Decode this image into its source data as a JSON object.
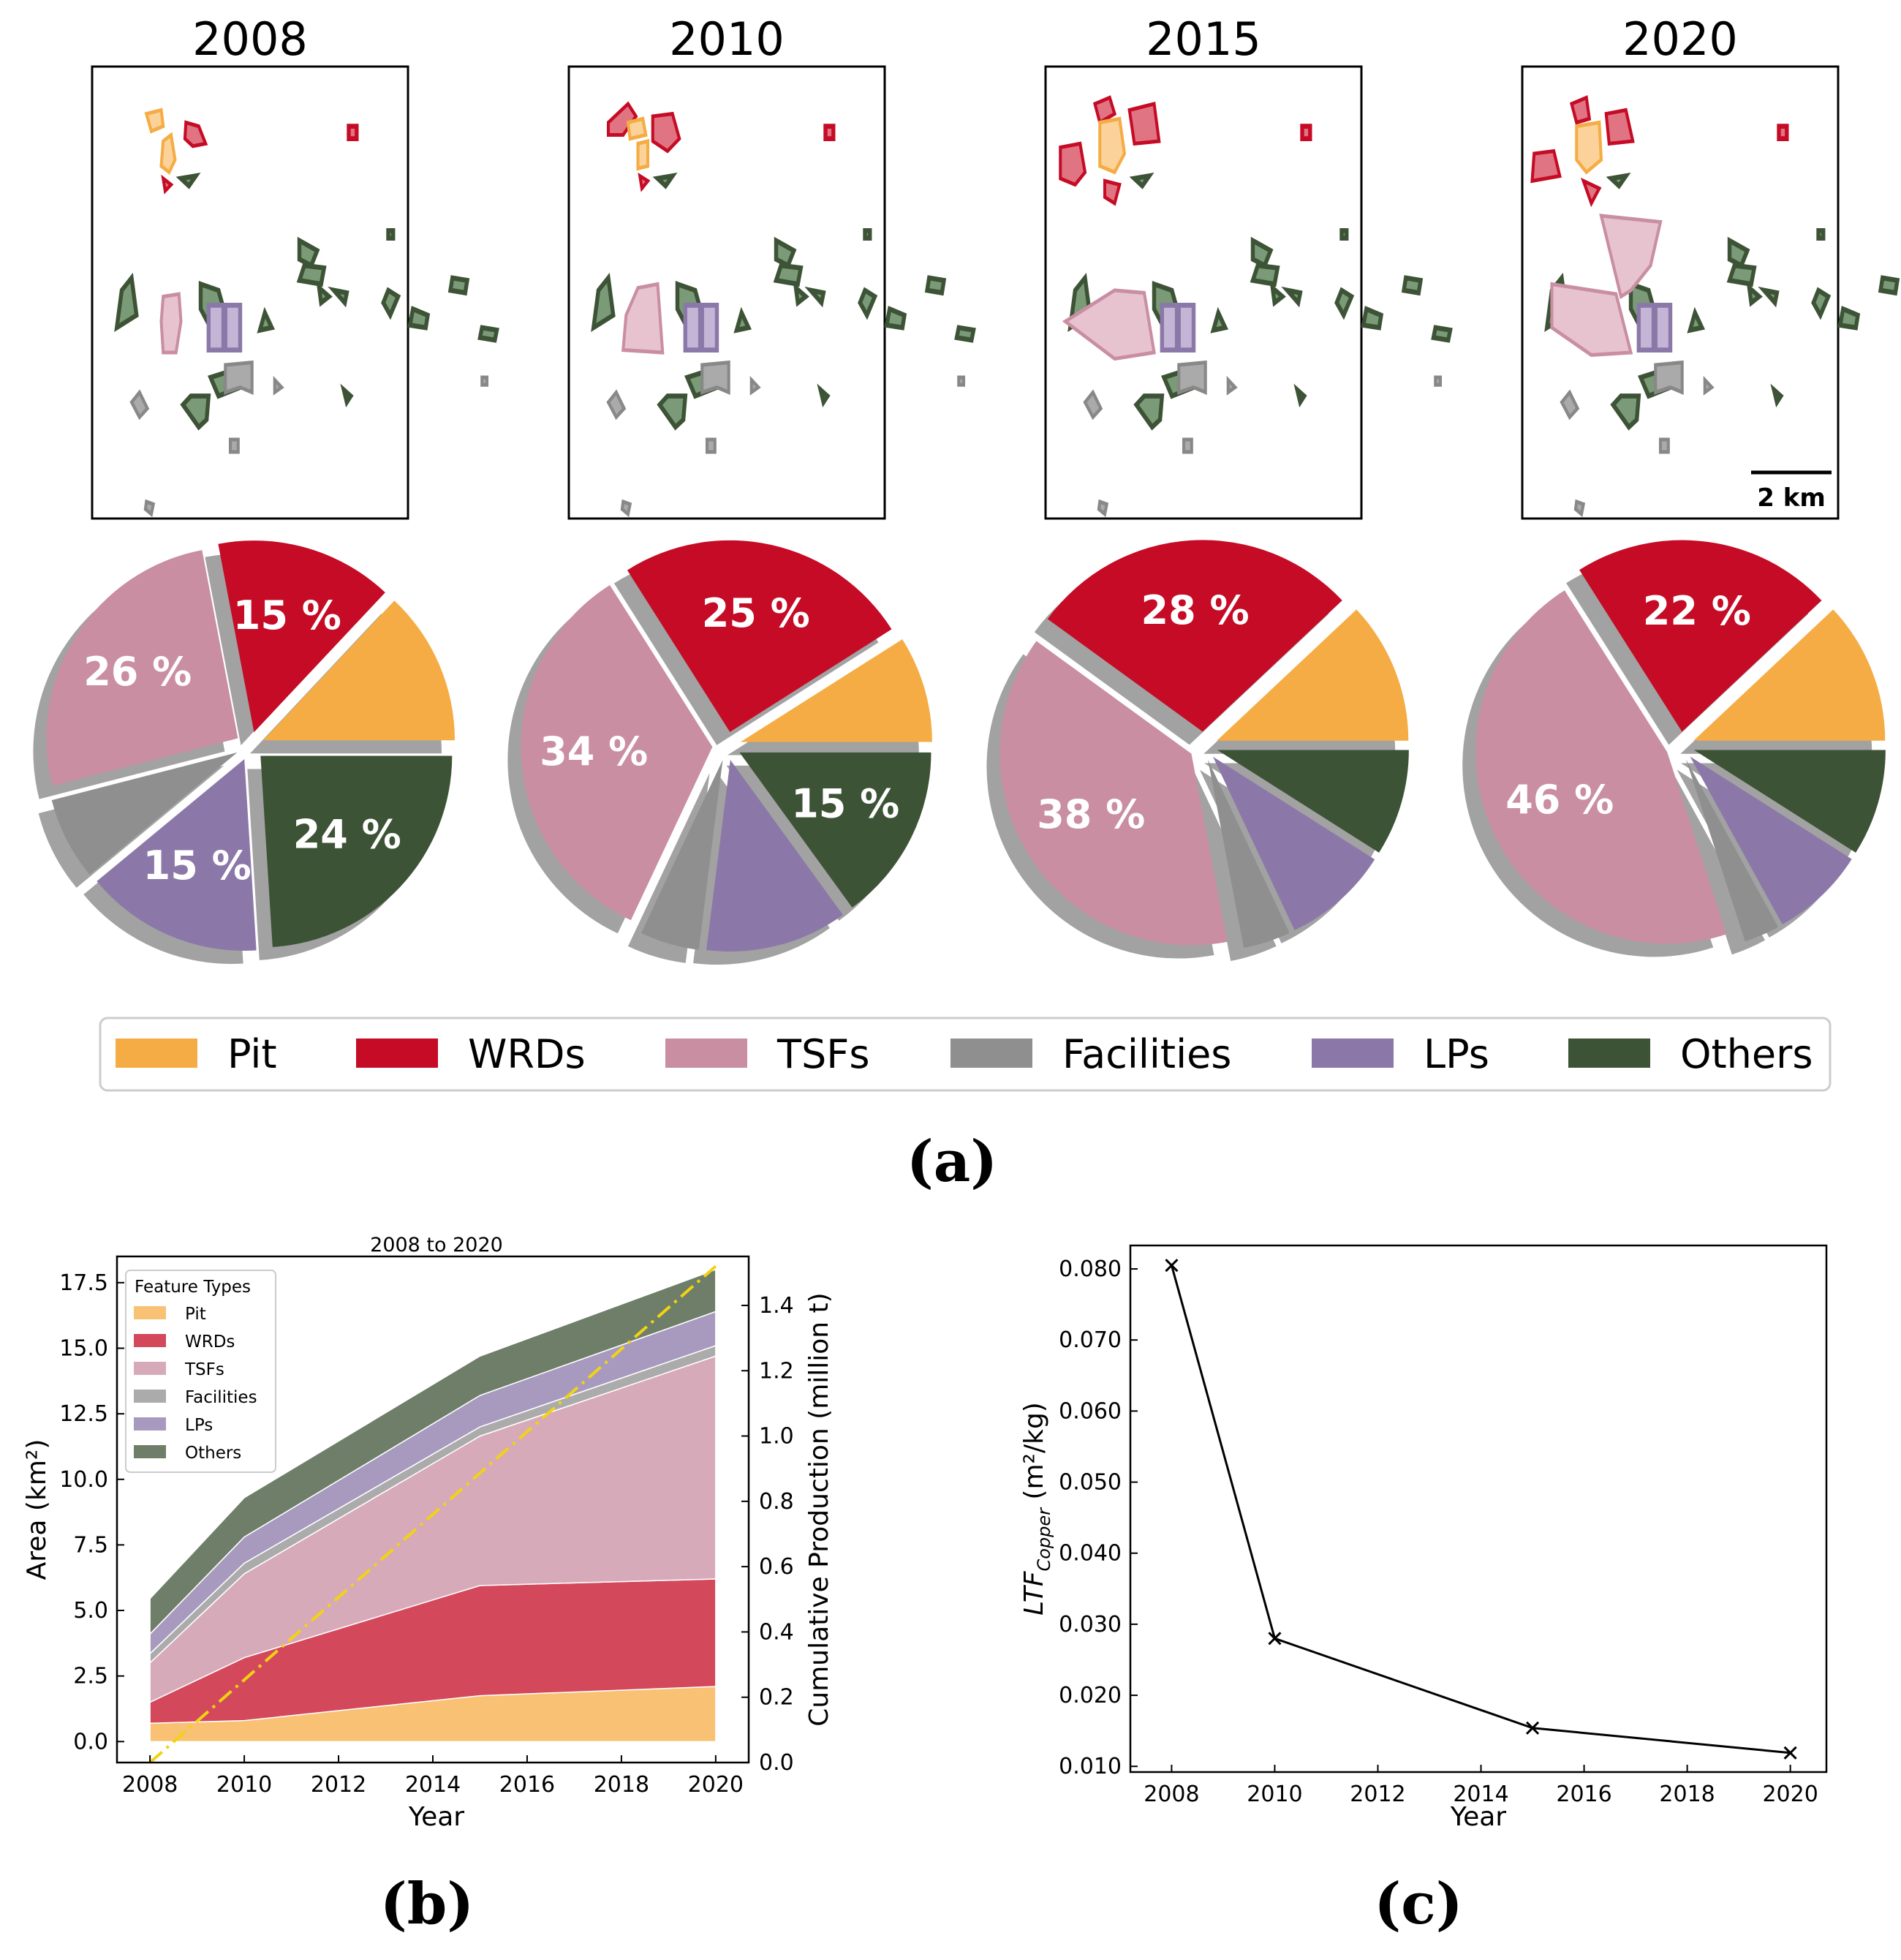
{
  "colors": {
    "Pit": "#f5ac44",
    "WRDs": "#c50b25",
    "TSFs": "#c98ea2",
    "Facilities": "#8f8f8f",
    "LPs": "#8b78a8",
    "Others": "#3d5336"
  },
  "panels": {
    "a": "(a)",
    "b": "(b)",
    "c": "(c)"
  },
  "maps": {
    "scale_label": "2 km"
  },
  "legend_top": [
    "Pit",
    "WRDs",
    "TSFs",
    "Facilities",
    "LPs",
    "Others"
  ],
  "chart_data": [
    {
      "type": "pie",
      "id": "pies",
      "categories": [
        "Pit",
        "WRDs",
        "TSFs",
        "Facilities",
        "LPs",
        "Others"
      ],
      "pies": [
        {
          "year": "2008",
          "values": [
            13,
            15,
            26,
            7,
            15,
            24
          ],
          "labels": [
            "",
            "15 %",
            "26 %",
            "",
            "15 %",
            "24 %"
          ]
        },
        {
          "year": "2010",
          "values": [
            9,
            25,
            34,
            5,
            12,
            15
          ],
          "labels": [
            "",
            "25 %",
            "34 %",
            "",
            "",
            "15 %"
          ]
        },
        {
          "year": "2015",
          "values": [
            12,
            28,
            38,
            4,
            9,
            9
          ],
          "labels": [
            "",
            "28 %",
            "38 %",
            "",
            "",
            ""
          ]
        },
        {
          "year": "2020",
          "values": [
            12,
            22,
            46,
            3,
            8,
            9
          ],
          "labels": [
            "",
            "22 %",
            "46 %",
            "",
            "",
            ""
          ]
        }
      ]
    },
    {
      "type": "area",
      "id": "b",
      "title": "2008 to 2020",
      "xlabel": "Year",
      "ylabel": "Area (km²)",
      "ylabel2": "Cumulative Production (million t)",
      "legend_title": "Feature Types",
      "x": [
        2008,
        2010,
        2015,
        2020
      ],
      "xlim": [
        2007.3,
        2020.7
      ],
      "ylim": [
        -0.8,
        18.5
      ],
      "y2lim": [
        0,
        1.55
      ],
      "xticks": [
        2008,
        2010,
        2012,
        2014,
        2016,
        2018,
        2020
      ],
      "yticks": [
        0.0,
        2.5,
        5.0,
        7.5,
        10.0,
        12.5,
        15.0,
        17.5
      ],
      "ytick_labels": [
        "0.0",
        "2.5",
        "5.0",
        "7.5",
        "10.0",
        "12.5",
        "15.0",
        "17.5"
      ],
      "y2ticks": [
        0.0,
        0.2,
        0.4,
        0.6,
        0.8,
        1.0,
        1.2,
        1.4
      ],
      "y2tick_labels": [
        "0.0",
        "0.2",
        "0.4",
        "0.6",
        "0.8",
        "1.0",
        "1.2",
        "1.4"
      ],
      "series": [
        {
          "name": "Pit",
          "values": [
            0.7,
            0.8,
            1.75,
            2.1
          ]
        },
        {
          "name": "WRDs",
          "values": [
            0.8,
            2.4,
            4.2,
            4.1
          ]
        },
        {
          "name": "TSFs",
          "values": [
            1.5,
            3.2,
            5.7,
            8.5
          ]
        },
        {
          "name": "Facilities",
          "values": [
            0.35,
            0.4,
            0.35,
            0.4
          ]
        },
        {
          "name": "LPs",
          "values": [
            0.75,
            1.0,
            1.2,
            1.3
          ]
        },
        {
          "name": "Others",
          "values": [
            1.35,
            1.5,
            1.5,
            1.6
          ]
        }
      ],
      "production": {
        "name": "Cumulative Production",
        "x": [
          2008,
          2020
        ],
        "values": [
          0.0,
          1.52
        ]
      }
    },
    {
      "type": "line",
      "id": "c",
      "xlabel": "Year",
      "ylabel_main": "LTF",
      "ylabel_sub": "Copper",
      "ylabel_unit": " (m²/kg)",
      "x": [
        2008,
        2010,
        2015,
        2020
      ],
      "values": [
        0.0805,
        0.028,
        0.0154,
        0.0119
      ],
      "xlim": [
        2007.2,
        2020.7
      ],
      "ylim": [
        0.0092,
        0.0833
      ],
      "xticks": [
        2008,
        2010,
        2012,
        2014,
        2016,
        2018,
        2020
      ],
      "yticks": [
        0.01,
        0.02,
        0.03,
        0.04,
        0.05,
        0.06,
        0.07,
        0.08
      ],
      "ytick_labels": [
        "0.010",
        "0.020",
        "0.030",
        "0.040",
        "0.050",
        "0.060",
        "0.070",
        "0.080"
      ]
    }
  ]
}
